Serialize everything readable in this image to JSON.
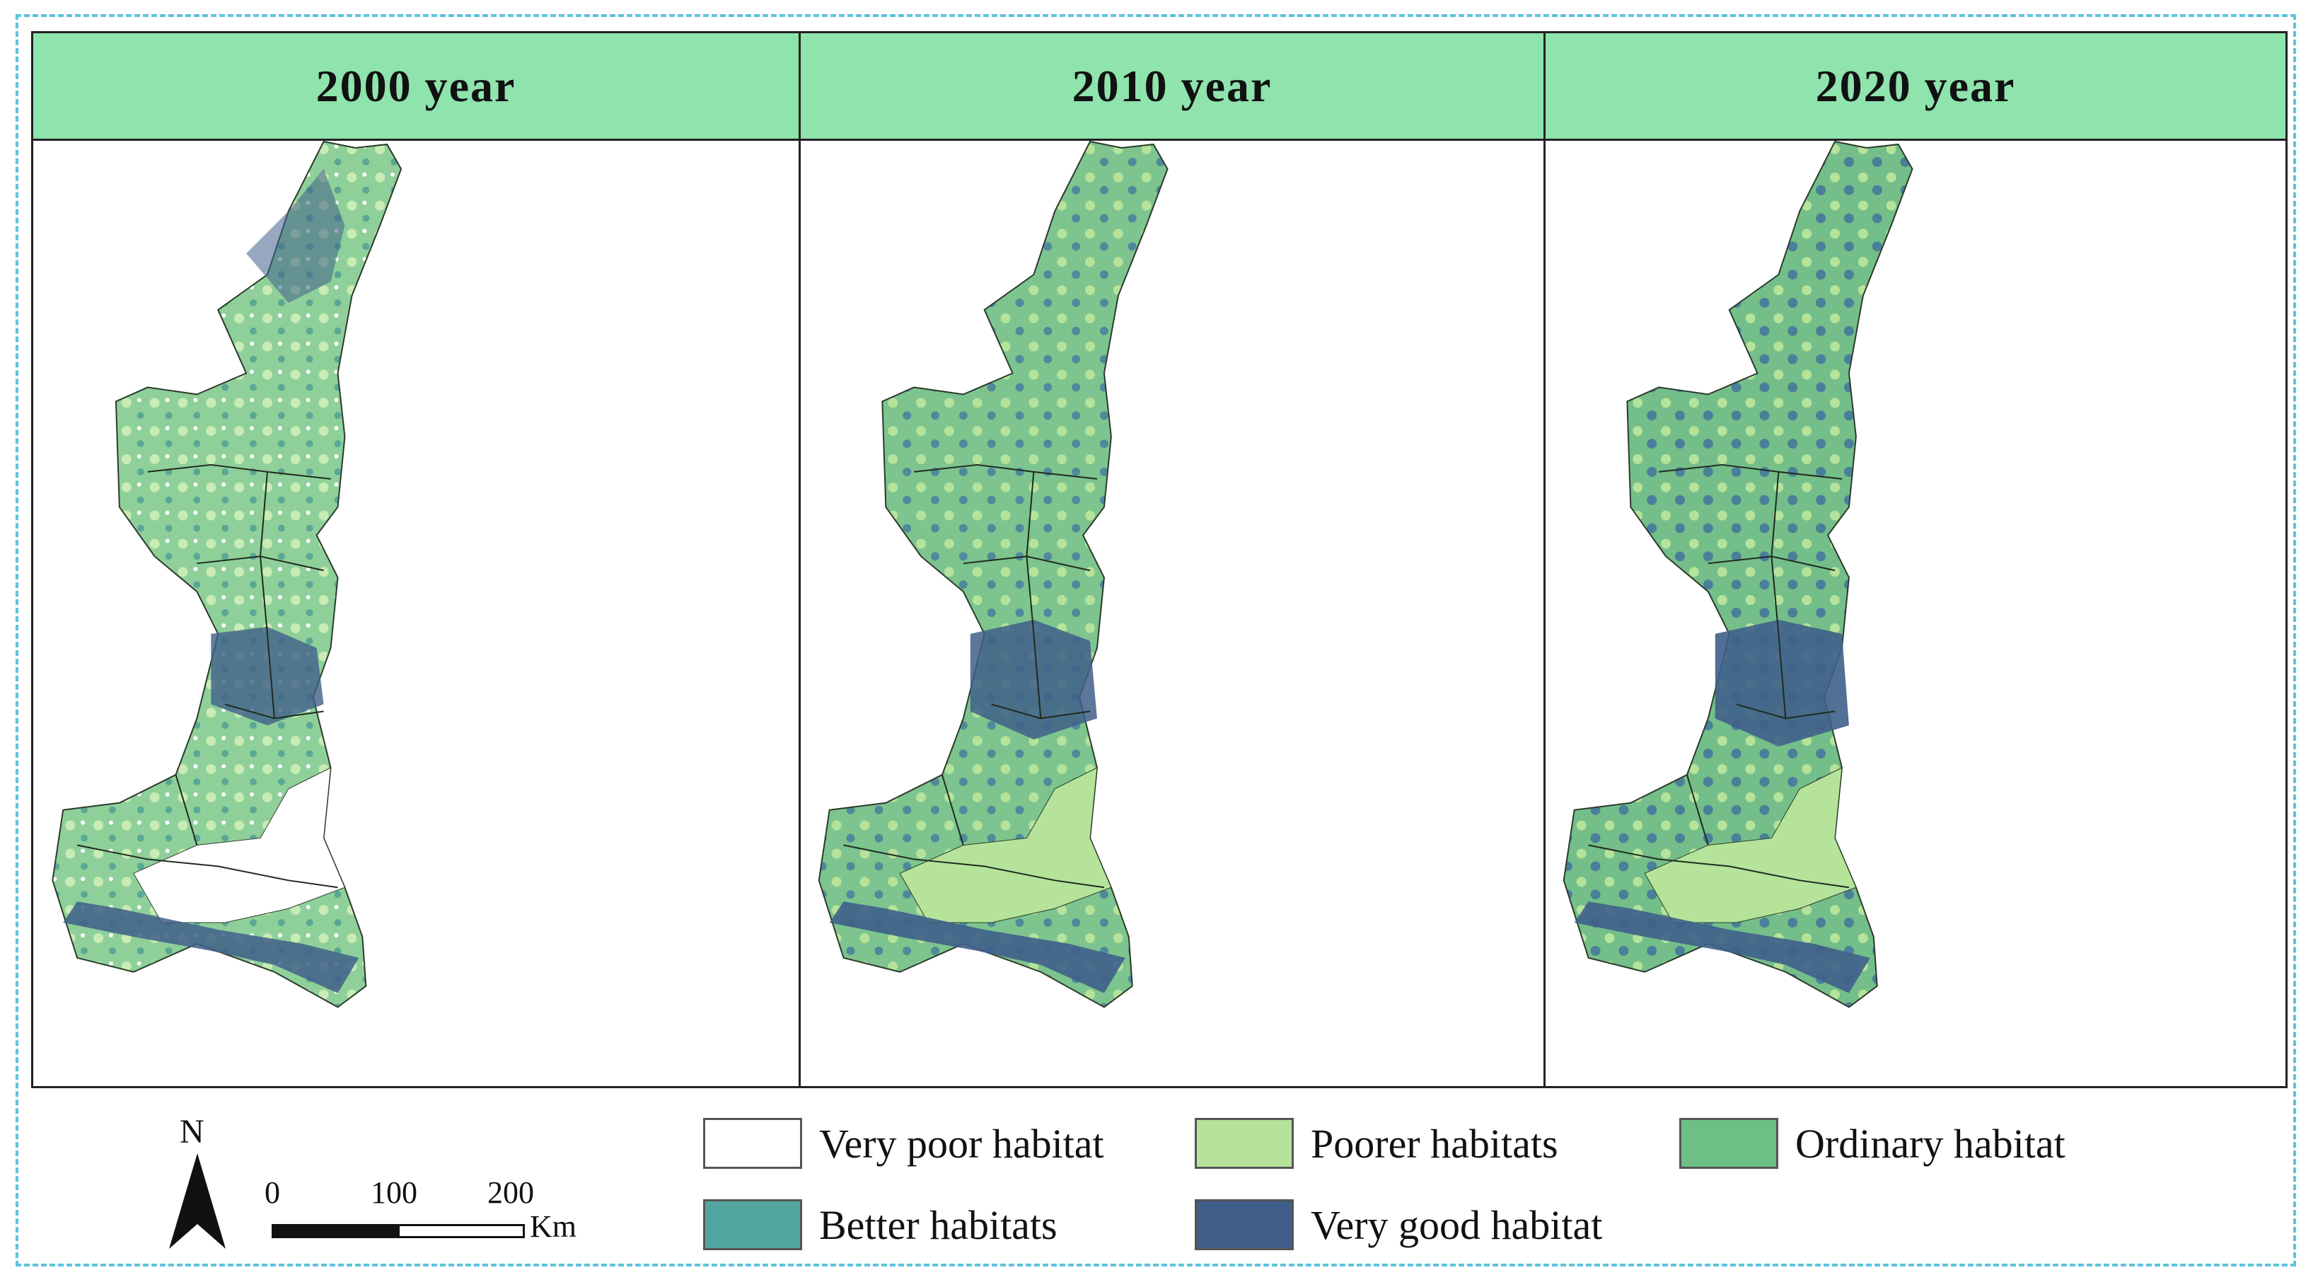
{
  "panels": [
    {
      "title": "2000 year",
      "pattern": "p2000"
    },
    {
      "title": "2010 year",
      "pattern": "p2010"
    },
    {
      "title": "2020 year",
      "pattern": "p2020"
    }
  ],
  "north_label": "N",
  "scale": {
    "ticks": [
      "0",
      "100",
      "200"
    ],
    "unit": "Km"
  },
  "legend": [
    {
      "label": "Very poor habitat",
      "color": "#ffffff"
    },
    {
      "label": "Poorer habitats",
      "color": "#b5e39a"
    },
    {
      "label": "Ordinary habitat",
      "color": "#6dbf86"
    },
    {
      "label": "Better habitats",
      "color": "#53a5a0"
    },
    {
      "label": "Very good habitat",
      "color": "#3f5f8a"
    }
  ]
}
